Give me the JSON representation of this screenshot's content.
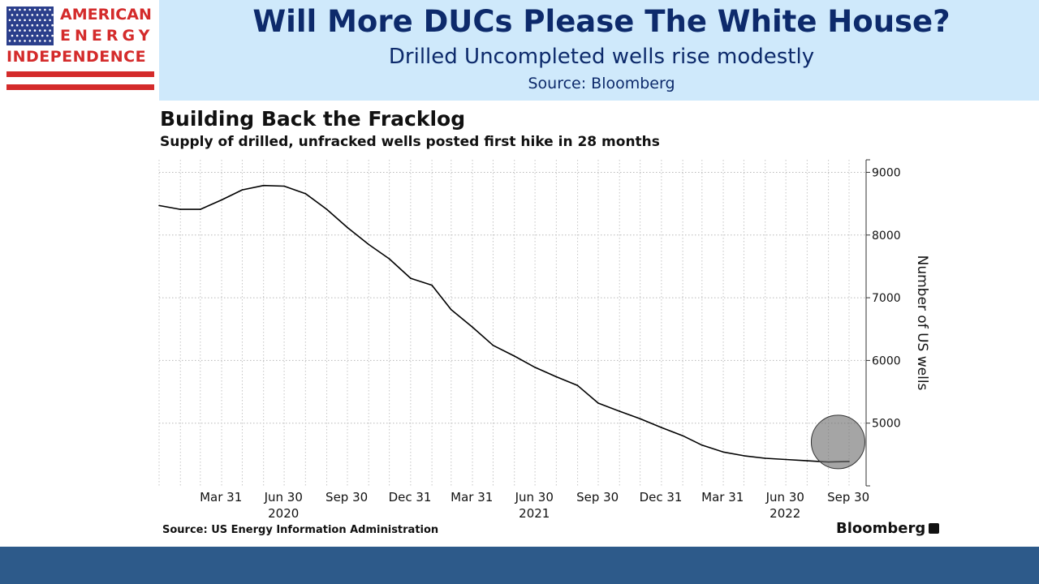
{
  "logo": {
    "line1": "AMERICAN",
    "line2": "ENERGY",
    "line3": "INDEPENDENCE",
    "colors": {
      "red": "#d42b2b",
      "blue": "#2b3f8c"
    }
  },
  "header": {
    "title": "Will More DUCs Please The White House?",
    "subtitle": "Drilled Uncompleted wells rise modestly",
    "source": "Source: Bloomberg",
    "colors": {
      "band": "#cfe9fb",
      "text": "#0d2a6b"
    }
  },
  "chart_data": {
    "type": "line",
    "title": "Building Back the Fracklog",
    "subtitle": "Supply of drilled, unfracked wells posted first hike in 28 months",
    "ylabel": "Number of US wells",
    "ylim": [
      4000,
      9200
    ],
    "yticks": [
      5000,
      6000,
      7000,
      8000,
      9000
    ],
    "xticks": [
      {
        "date": "2020-03-31",
        "label": "Mar 31",
        "year": ""
      },
      {
        "date": "2020-06-30",
        "label": "Jun 30",
        "year": "2020"
      },
      {
        "date": "2020-09-30",
        "label": "Sep 30",
        "year": ""
      },
      {
        "date": "2020-12-31",
        "label": "Dec 31",
        "year": ""
      },
      {
        "date": "2021-03-31",
        "label": "Mar 31",
        "year": ""
      },
      {
        "date": "2021-06-30",
        "label": "Jun 30",
        "year": "2021"
      },
      {
        "date": "2021-09-30",
        "label": "Sep 30",
        "year": ""
      },
      {
        "date": "2021-12-31",
        "label": "Dec 31",
        "year": ""
      },
      {
        "date": "2022-03-31",
        "label": "Mar 31",
        "year": ""
      },
      {
        "date": "2022-06-30",
        "label": "Jun 30",
        "year": "2022"
      },
      {
        "date": "2022-09-30",
        "label": "Sep 30",
        "year": ""
      }
    ],
    "grid": true,
    "series": [
      {
        "color": "#000000",
        "points": [
          [
            "2020-01-01",
            8470
          ],
          [
            "2020-02-01",
            8410
          ],
          [
            "2020-03-01",
            8410
          ],
          [
            "2020-04-01",
            8560
          ],
          [
            "2020-05-01",
            8720
          ],
          [
            "2020-06-01",
            8790
          ],
          [
            "2020-07-01",
            8780
          ],
          [
            "2020-08-01",
            8660
          ],
          [
            "2020-09-01",
            8410
          ],
          [
            "2020-10-01",
            8120
          ],
          [
            "2020-11-01",
            7850
          ],
          [
            "2020-12-01",
            7620
          ],
          [
            "2021-01-01",
            7310
          ],
          [
            "2021-02-01",
            7200
          ],
          [
            "2021-03-01",
            6810
          ],
          [
            "2021-04-01",
            6530
          ],
          [
            "2021-05-01",
            6240
          ],
          [
            "2021-06-01",
            6070
          ],
          [
            "2021-07-01",
            5890
          ],
          [
            "2021-08-01",
            5740
          ],
          [
            "2021-09-01",
            5600
          ],
          [
            "2021-10-01",
            5320
          ],
          [
            "2021-11-01",
            5190
          ],
          [
            "2021-12-01",
            5070
          ],
          [
            "2022-01-01",
            4930
          ],
          [
            "2022-02-01",
            4800
          ],
          [
            "2022-03-01",
            4650
          ],
          [
            "2022-04-01",
            4540
          ],
          [
            "2022-05-01",
            4480
          ],
          [
            "2022-06-01",
            4440
          ],
          [
            "2022-07-01",
            4420
          ],
          [
            "2022-08-01",
            4400
          ],
          [
            "2022-09-01",
            4380
          ],
          [
            "2022-10-01",
            4390
          ]
        ]
      }
    ],
    "annotation": {
      "type": "circle-highlight",
      "date": "2022-09-15",
      "value": 4700,
      "color": "#6e6e6e"
    },
    "source": "Source: US Energy Information Administration",
    "brand": "Bloomberg"
  },
  "footer": {
    "color": "#2d5a8a"
  }
}
